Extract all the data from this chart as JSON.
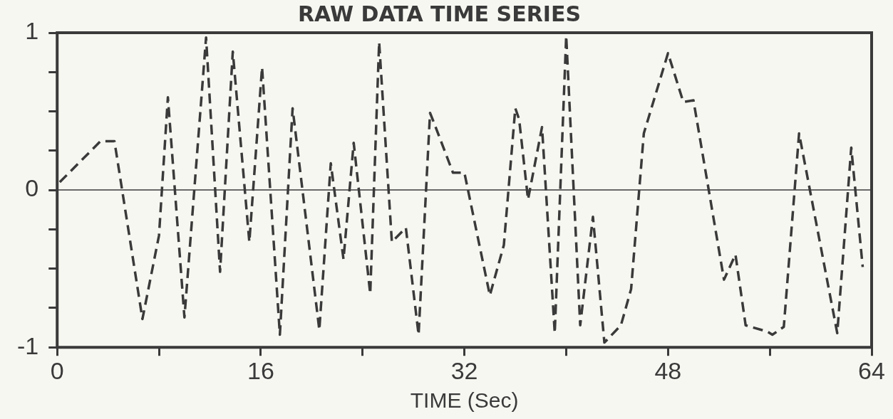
{
  "chart_data": {
    "type": "line",
    "title": "RAW DATA TIME SERIES",
    "xlabel": "TIME (Sec)",
    "x": [
      0.2,
      3.4,
      4.5,
      6.7,
      8.0,
      8.7,
      10.0,
      11.7,
      12.8,
      13.8,
      15.1,
      16.1,
      17.5,
      18.5,
      20.6,
      21.5,
      22.5,
      23.3,
      24.6,
      25.3,
      26.3,
      27.4,
      28.4,
      29.3,
      29.6,
      31.1,
      32.0,
      34.0,
      35.1,
      36.0,
      36.3,
      37.0,
      38.1,
      39.1,
      40.0,
      41.1,
      42.1,
      43.0,
      44.3,
      45.1,
      46.1,
      48.0,
      49.2,
      50.0,
      52.4,
      53.3,
      54.1,
      55.8,
      56.2,
      57.1,
      58.3,
      61.3,
      62.4,
      63.3
    ],
    "series": [
      {
        "color": "#3a3a3a",
        "values": [
          0.05,
          0.31,
          0.31,
          -0.82,
          -0.29,
          0.59,
          -0.81,
          0.97,
          -0.52,
          0.88,
          -0.33,
          0.78,
          -0.92,
          0.52,
          -0.89,
          0.17,
          -0.44,
          0.3,
          -0.66,
          0.94,
          -0.33,
          -0.24,
          -0.92,
          0.49,
          0.43,
          0.11,
          0.11,
          -0.67,
          -0.35,
          0.52,
          0.45,
          -0.06,
          0.4,
          -0.91,
          0.98,
          -0.86,
          -0.17,
          -0.97,
          -0.86,
          -0.63,
          0.36,
          0.87,
          0.56,
          0.57,
          -0.57,
          -0.41,
          -0.86,
          -0.9,
          -0.92,
          -0.87,
          0.36,
          -0.91,
          0.27,
          -0.49
        ]
      }
    ],
    "xlim": [
      0,
      64
    ],
    "xticks": [
      0,
      {
        "value": 8,
        "label": null
      },
      16,
      {
        "value": 24,
        "label": null
      },
      32,
      {
        "value": 40,
        "label": null
      },
      48,
      {
        "value": 56,
        "label": null
      },
      64
    ],
    "ylim": [
      -1,
      1
    ],
    "yticks": [
      -1,
      {
        "value": -0.75,
        "label": null
      },
      {
        "value": -0.5,
        "label": null
      },
      {
        "value": -0.25,
        "label": null
      },
      0,
      {
        "value": 0.25,
        "label": null
      },
      {
        "value": 0.5,
        "label": null
      },
      {
        "value": 0.75,
        "label": null
      },
      1
    ],
    "ref_lines": [
      {
        "axis": "y",
        "value": 0,
        "color": "#3a3a3a",
        "line_style": "solid"
      }
    ],
    "grid": false,
    "legend": false,
    "marker": "none",
    "line_style": "dashed"
  }
}
